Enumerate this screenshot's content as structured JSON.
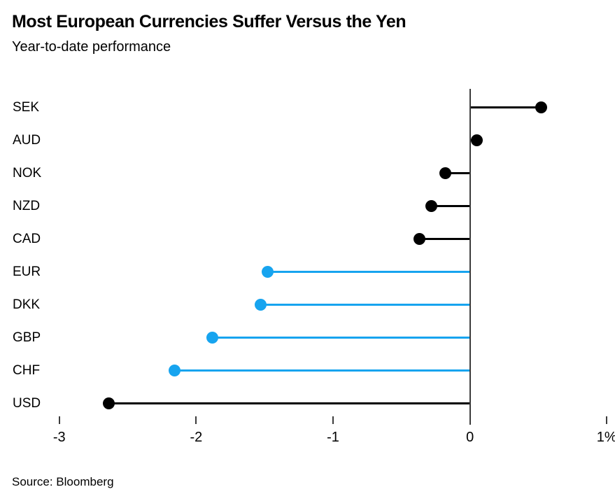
{
  "header": {
    "title": "Most European Currencies Suffer Versus the Yen",
    "subtitle": "Year-to-date performance"
  },
  "footer": {
    "source": "Source: Bloomberg"
  },
  "colors": {
    "black_series": "#000000",
    "blue_series": "#17a4ef",
    "axis": "#3c3c3c"
  },
  "chart_data": {
    "type": "bar",
    "style": "lollipop",
    "orientation": "horizontal",
    "title": "Most European Currencies Suffer Versus the Yen",
    "subtitle": "Year-to-date performance",
    "xlabel": "",
    "ylabel": "",
    "categories": [
      "SEK",
      "AUD",
      "NOK",
      "NZD",
      "CAD",
      "EUR",
      "DKK",
      "GBP",
      "CHF",
      "USD"
    ],
    "values": [
      0.52,
      0.05,
      -0.18,
      -0.28,
      -0.37,
      -1.48,
      -1.53,
      -1.88,
      -2.16,
      -2.64
    ],
    "point_colors": [
      "#000000",
      "#000000",
      "#000000",
      "#000000",
      "#000000",
      "#17a4ef",
      "#17a4ef",
      "#17a4ef",
      "#17a4ef",
      "#000000"
    ],
    "xlim": [
      -3.06,
      1.06
    ],
    "x_ticks": [
      {
        "value": -3,
        "label": "-3"
      },
      {
        "value": -2,
        "label": "-2"
      },
      {
        "value": -1,
        "label": "-1"
      },
      {
        "value": 0,
        "label": "0"
      },
      {
        "value": 1,
        "label": "1%"
      }
    ],
    "grid": false,
    "legend": "none",
    "baseline_value": 0
  }
}
